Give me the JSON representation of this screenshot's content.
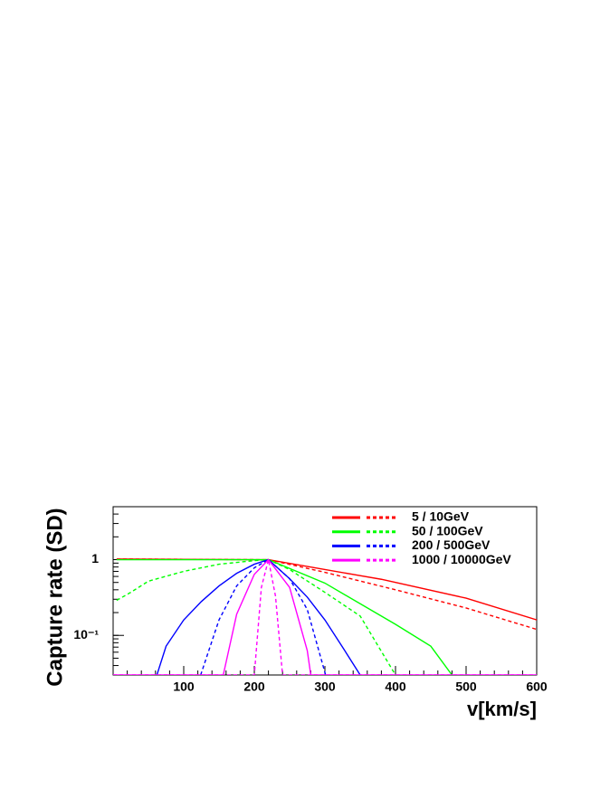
{
  "chart_data": {
    "type": "line",
    "y_label": "Capture rate (SD)",
    "x_label": "v[km/s]",
    "xlim": [
      0,
      600
    ],
    "xticks": [
      100,
      200,
      300,
      400,
      500,
      600
    ],
    "ylim": [
      0.03,
      5
    ],
    "yticks": [
      1,
      {
        "value": 0.1,
        "label": "10⁻¹"
      }
    ],
    "log_y": true,
    "legend_position": "upper-right",
    "legend": [
      {
        "label": "5 / 10GeV",
        "color": "#ff0000"
      },
      {
        "label": "50 / 100GeV",
        "color": "#00ff00"
      },
      {
        "label": "200 / 500GeV",
        "color": "#0000ff"
      },
      {
        "label": "1000 / 10000GeV",
        "color": "#ff00ff"
      }
    ],
    "series": [
      {
        "color": "#ff0000",
        "dash": "solid",
        "x": [
          5,
          100,
          200,
          220,
          300,
          380,
          500,
          600
        ],
        "values": [
          1.02,
          1.01,
          1.0,
          1.0,
          0.74,
          0.55,
          0.31,
          0.16
        ]
      },
      {
        "color": "#ff0000",
        "dash": "dashed",
        "x": [
          5,
          100,
          200,
          220,
          300,
          400,
          500,
          600
        ],
        "values": [
          1.02,
          1.01,
          1.0,
          1.0,
          0.68,
          0.4,
          0.23,
          0.12
        ]
      },
      {
        "color": "#00ff00",
        "dash": "solid",
        "x": [
          5,
          100,
          200,
          220,
          300,
          400,
          450,
          480
        ],
        "values": [
          1.0,
          1.0,
          1.0,
          1.0,
          0.49,
          0.14,
          0.072,
          0.03
        ]
      },
      {
        "color": "#00ff00",
        "dash": "dashed",
        "x": [
          5,
          25,
          50,
          100,
          150,
          200,
          220,
          250,
          300,
          350,
          400
        ],
        "values": [
          0.29,
          0.37,
          0.52,
          0.7,
          0.87,
          0.97,
          1.0,
          0.74,
          0.37,
          0.18,
          0.03
        ]
      },
      {
        "color": "#0000ff",
        "dash": "solid",
        "x": [
          62,
          75,
          100,
          125,
          150,
          175,
          200,
          220,
          250,
          275,
          300,
          325,
          350
        ],
        "values": [
          0.03,
          0.072,
          0.16,
          0.28,
          0.45,
          0.66,
          0.87,
          1.0,
          0.56,
          0.32,
          0.16,
          0.07,
          0.03
        ]
      },
      {
        "color": "#0000ff",
        "dash": "dashed",
        "x": [
          124,
          150,
          175,
          200,
          220,
          250,
          275,
          301
        ],
        "values": [
          0.03,
          0.16,
          0.45,
          0.78,
          1.0,
          0.56,
          0.22,
          0.03
        ]
      },
      {
        "color": "#ff00ff",
        "dash": "solid",
        "x": [
          0,
          156,
          175,
          200,
          220,
          250,
          275,
          280,
          600
        ],
        "values": [
          0.03,
          0.03,
          0.19,
          0.64,
          1.0,
          0.43,
          0.063,
          0.03,
          0.03
        ]
      },
      {
        "color": "#ff00ff",
        "dash": "dashed",
        "x": [
          0,
          200,
          210,
          220,
          230,
          240,
          600
        ],
        "values": [
          0.03,
          0.03,
          0.43,
          1.0,
          0.33,
          0.03,
          0.03
        ]
      }
    ]
  }
}
